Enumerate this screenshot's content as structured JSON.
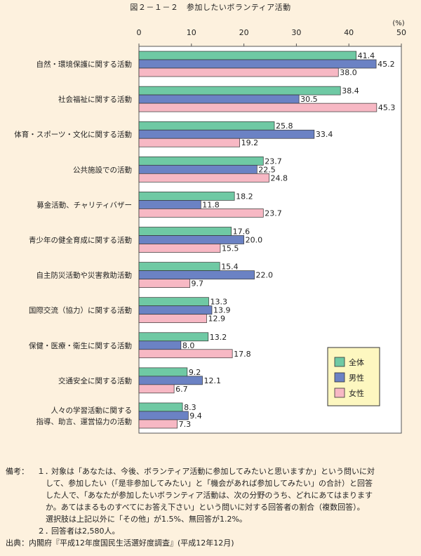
{
  "title": "図２－１－２　参加したいボランティア活動",
  "colors": {
    "total": "#6fc9a4",
    "male": "#6b82c4",
    "female": "#f7b8c4",
    "plot_bg": "#ffffff",
    "border": "#555555"
  },
  "chart_data": {
    "type": "bar",
    "orientation": "horizontal",
    "unit": "(%)",
    "xlim": [
      0,
      50
    ],
    "ticks": [
      "0",
      "10",
      "20",
      "30",
      "40",
      "50"
    ],
    "categories": [
      "自然・環境保護に関する活動",
      "社会福祉に関する活動",
      "体育・スポーツ・文化に関する活動",
      "公共施設での活動",
      "募金活動、チャリティバザー",
      "青少年の健全育成に関する活動",
      "自主防災活動や災害救助活動",
      "国際交流（協力）に関する活動",
      "保健・医療・衛生に関する活動",
      "交通安全に関する活動",
      [
        "人々の学習活動に関する",
        "指導、助言、運営協力の活動"
      ]
    ],
    "series": [
      {
        "name": "全体",
        "values": [
          41.4,
          38.4,
          25.8,
          23.7,
          18.2,
          17.6,
          15.4,
          13.3,
          13.2,
          9.2,
          8.3
        ]
      },
      {
        "name": "男性",
        "values": [
          45.2,
          30.5,
          33.4,
          22.5,
          11.8,
          20.0,
          22.0,
          13.9,
          8.0,
          12.1,
          9.4
        ]
      },
      {
        "name": "女性",
        "values": [
          38.0,
          45.3,
          19.2,
          24.8,
          23.7,
          15.5,
          9.7,
          12.9,
          17.8,
          6.7,
          7.3
        ]
      }
    ],
    "legend": "bottom-right"
  },
  "notes": {
    "label": "備考：",
    "items": [
      {
        "num": "１．",
        "lines": [
          "対象は「あなたは、今後、ボランティア活動に参加してみたいと思いますか」という問いに対",
          "して、参加したい（「是非参加してみたい」と「機会があれば参加してみたい」の合計）と回答",
          "した人で、「あなたが参加したいボランティア活動は、次の分野のうち、どれにあてはまります",
          "か。あてはまるものすべてにお答え下さい」という問いに対する回答者の割合（複数回答）。",
          "選択肢は上記以外に「その他」が1.5%、無回答が1.2%。"
        ]
      },
      {
        "num": "２．",
        "lines": [
          "回答者は2,580人。"
        ]
      }
    ],
    "source": "出典：内閣府『平成12年度国民生活選好度調査』(平成12年12月)"
  }
}
